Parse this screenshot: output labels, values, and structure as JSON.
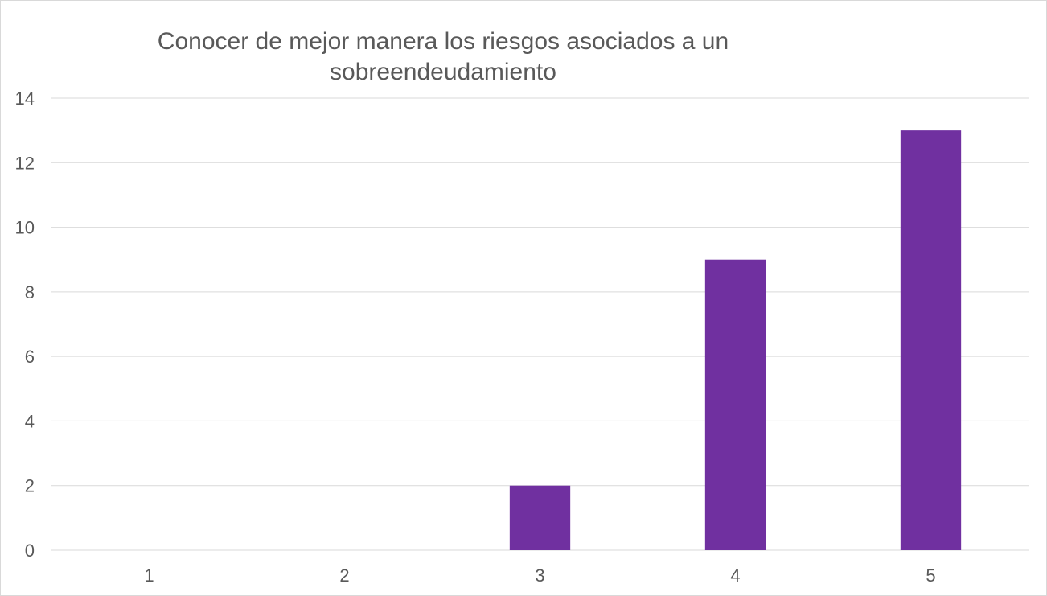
{
  "chart_data": {
    "type": "bar",
    "title_lines": [
      "Conocer de mejor manera los riesgos asociados a un",
      "sobreendeudamiento"
    ],
    "categories": [
      "1",
      "2",
      "3",
      "4",
      "5"
    ],
    "values": [
      0,
      0,
      2,
      9,
      13
    ],
    "ylim": [
      0,
      14
    ],
    "yticks": [
      "0",
      "2",
      "4",
      "6",
      "8",
      "10",
      "12",
      "14"
    ],
    "xlabel": "",
    "ylabel": "",
    "grid": true,
    "legend": "none",
    "bar_color": "#7030a0",
    "grid_color": "#d9d9d9"
  }
}
